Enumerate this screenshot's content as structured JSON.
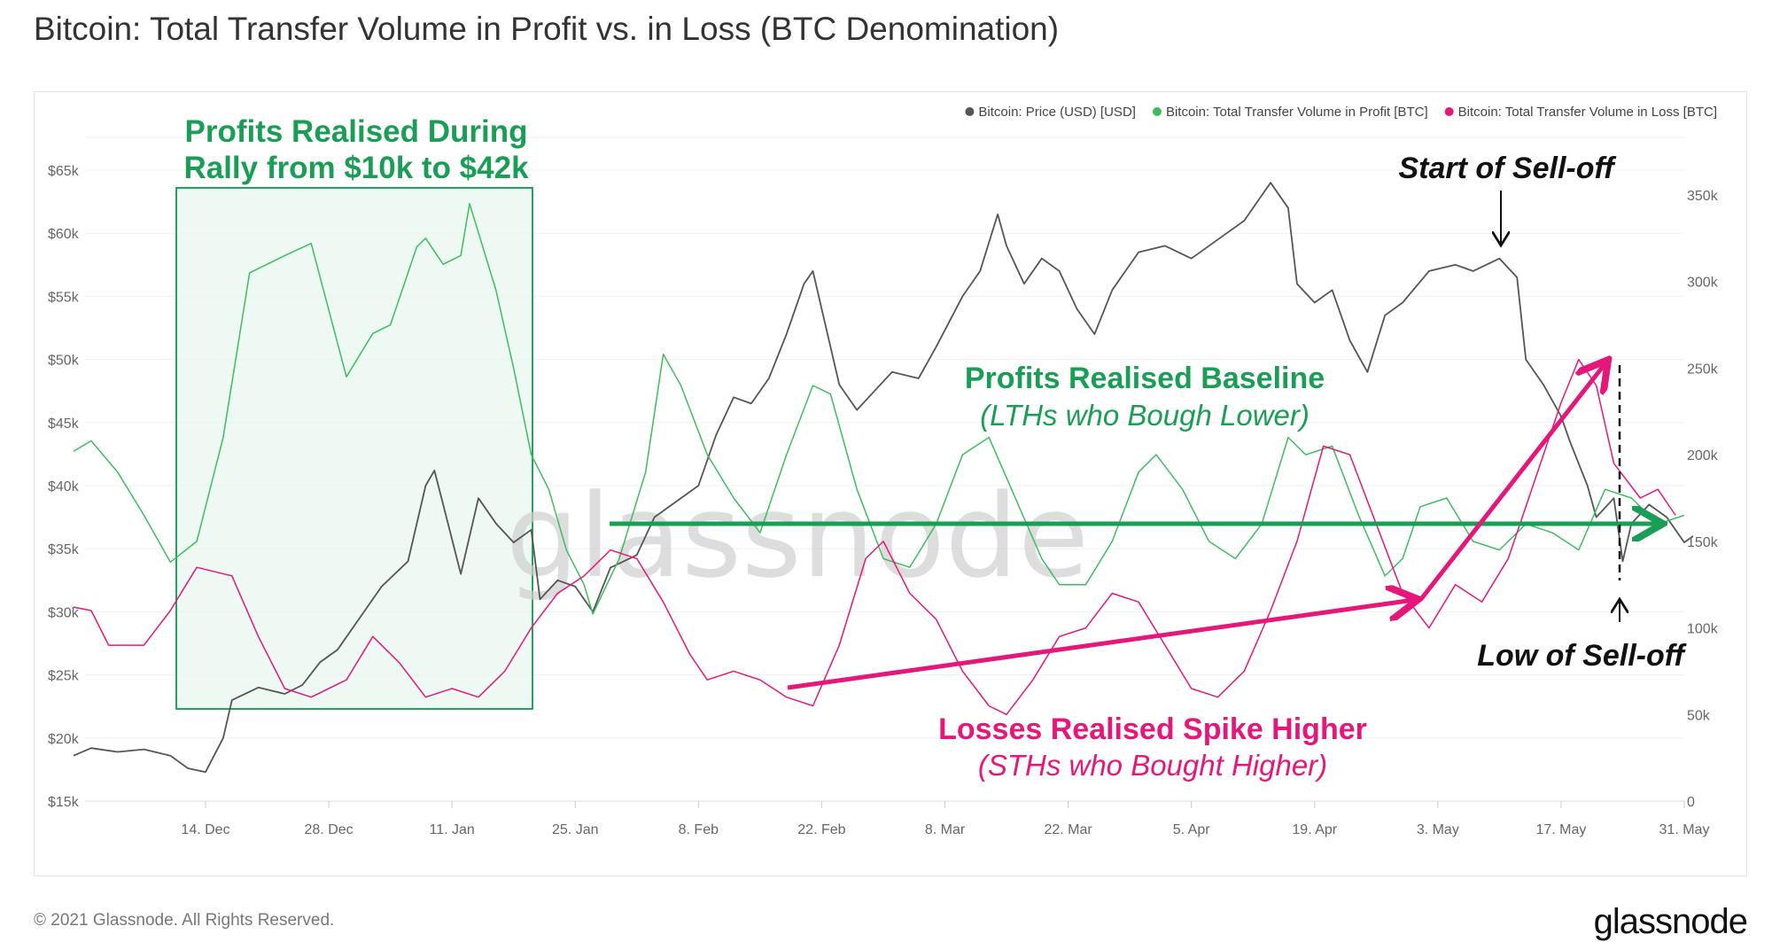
{
  "title": "Bitcoin: Total Transfer Volume in Profit vs. in Loss (BTC Denomination)",
  "footer": {
    "copyright": "© 2021 Glassnode. All Rights Reserved.",
    "logo": "glassnode"
  },
  "watermark": "glassnode",
  "colors": {
    "price": "#555555",
    "profit": "#3dbd5e",
    "loss": "#e6177a",
    "annot_green": "#1a9e55",
    "annot_pink": "#e6177a"
  },
  "annotations": {
    "box_title_1": "Profits Realised During",
    "box_title_2": "Rally from $10k to $42k",
    "start_selloff": "Start of Sell-off",
    "low_selloff": "Low of Sell-off",
    "baseline_title": "Profits Realised Baseline",
    "baseline_sub": "(LTHs who Bough Lower)",
    "losses_title": "Losses Realised Spike Higher",
    "losses_sub": "(STHs who Bought Higher)"
  },
  "chart_data": {
    "type": "line",
    "title": "Bitcoin: Total Transfer Volume in Profit vs. in Loss (BTC Denomination)",
    "x_unit": "days since 29 Nov 2020",
    "xlim": [
      0,
      185
    ],
    "x_ticks": [
      {
        "day": 15,
        "label": "14. Dec"
      },
      {
        "day": 29,
        "label": "28. Dec"
      },
      {
        "day": 43,
        "label": "11. Jan"
      },
      {
        "day": 57,
        "label": "25. Jan"
      },
      {
        "day": 71,
        "label": "8. Feb"
      },
      {
        "day": 85,
        "label": "22. Feb"
      },
      {
        "day": 99,
        "label": "8. Mar"
      },
      {
        "day": 113,
        "label": "22. Mar"
      },
      {
        "day": 127,
        "label": "5. Apr"
      },
      {
        "day": 141,
        "label": "19. Apr"
      },
      {
        "day": 155,
        "label": "3. May"
      },
      {
        "day": 169,
        "label": "17. May"
      },
      {
        "day": 183,
        "label": "31. May"
      }
    ],
    "y_left": {
      "label": "Price (USD)",
      "lim": [
        15000,
        65000
      ],
      "ticks": [
        {
          "v": 15000,
          "label": "$15k"
        },
        {
          "v": 20000,
          "label": "$20k"
        },
        {
          "v": 25000,
          "label": "$25k"
        },
        {
          "v": 30000,
          "label": "$30k"
        },
        {
          "v": 35000,
          "label": "$35k"
        },
        {
          "v": 40000,
          "label": "$40k"
        },
        {
          "v": 45000,
          "label": "$45k"
        },
        {
          "v": 50000,
          "label": "$50k"
        },
        {
          "v": 55000,
          "label": "$55k"
        },
        {
          "v": 60000,
          "label": "$60k"
        },
        {
          "v": 65000,
          "label": "$65k"
        }
      ]
    },
    "y_right": {
      "label": "BTC",
      "lim": [
        0,
        350000
      ],
      "ticks": [
        {
          "v": 0,
          "label": "0"
        },
        {
          "v": 50000,
          "label": "50k"
        },
        {
          "v": 100000,
          "label": "100k"
        },
        {
          "v": 150000,
          "label": "150k"
        },
        {
          "v": 200000,
          "label": "200k"
        },
        {
          "v": 250000,
          "label": "250k"
        },
        {
          "v": 300000,
          "label": "300k"
        },
        {
          "v": 350000,
          "label": "350k"
        }
      ]
    },
    "legend": {
      "position": "top-right",
      "entries": [
        "Bitcoin: Price (USD) [USD]",
        "Bitcoin: Total Transfer Volume in Profit [BTC]",
        "Bitcoin: Total Transfer Volume in Loss [BTC]"
      ]
    },
    "series": [
      {
        "name": "Bitcoin: Price (USD) [USD]",
        "axis": "left",
        "color": "#555555",
        "points": [
          [
            0,
            18600
          ],
          [
            2,
            19200
          ],
          [
            5,
            18900
          ],
          [
            8,
            19100
          ],
          [
            11,
            18600
          ],
          [
            13,
            17600
          ],
          [
            15,
            17300
          ],
          [
            17,
            20000
          ],
          [
            18,
            23000
          ],
          [
            21,
            24000
          ],
          [
            24,
            23500
          ],
          [
            26,
            24200
          ],
          [
            28,
            26000
          ],
          [
            30,
            27000
          ],
          [
            32,
            29000
          ],
          [
            35,
            32000
          ],
          [
            38,
            34000
          ],
          [
            40,
            40000
          ],
          [
            41,
            41200
          ],
          [
            42,
            38500
          ],
          [
            44,
            33000
          ],
          [
            46,
            39000
          ],
          [
            48,
            37000
          ],
          [
            50,
            35500
          ],
          [
            52,
            36500
          ],
          [
            53,
            31000
          ],
          [
            55,
            32500
          ],
          [
            57,
            32000
          ],
          [
            59,
            30000
          ],
          [
            61,
            33500
          ],
          [
            64,
            34500
          ],
          [
            66,
            37500
          ],
          [
            68,
            38500
          ],
          [
            71,
            40000
          ],
          [
            73,
            44000
          ],
          [
            75,
            47000
          ],
          [
            77,
            46500
          ],
          [
            79,
            48500
          ],
          [
            81,
            52000
          ],
          [
            83,
            56000
          ],
          [
            84,
            57000
          ],
          [
            85,
            54000
          ],
          [
            87,
            48000
          ],
          [
            89,
            46000
          ],
          [
            91,
            47500
          ],
          [
            93,
            49000
          ],
          [
            96,
            48500
          ],
          [
            98,
            51000
          ],
          [
            101,
            55000
          ],
          [
            103,
            57000
          ],
          [
            105,
            61500
          ],
          [
            106,
            59000
          ],
          [
            108,
            56000
          ],
          [
            110,
            58000
          ],
          [
            112,
            57000
          ],
          [
            114,
            54000
          ],
          [
            116,
            52000
          ],
          [
            118,
            55500
          ],
          [
            121,
            58500
          ],
          [
            124,
            59000
          ],
          [
            127,
            58000
          ],
          [
            130,
            59500
          ],
          [
            133,
            61000
          ],
          [
            135,
            63000
          ],
          [
            136,
            64000
          ],
          [
            138,
            62000
          ],
          [
            139,
            56000
          ],
          [
            141,
            54500
          ],
          [
            143,
            55500
          ],
          [
            145,
            51500
          ],
          [
            147,
            49000
          ],
          [
            149,
            53500
          ],
          [
            151,
            54500
          ],
          [
            154,
            57000
          ],
          [
            157,
            57500
          ],
          [
            159,
            57000
          ],
          [
            162,
            58000
          ],
          [
            164,
            56500
          ],
          [
            165,
            50000
          ],
          [
            167,
            48000
          ],
          [
            169,
            45500
          ],
          [
            170,
            43500
          ],
          [
            172,
            40000
          ],
          [
            173,
            37500
          ],
          [
            175,
            39000
          ],
          [
            176,
            34000
          ],
          [
            177,
            37000
          ],
          [
            179,
            38500
          ],
          [
            181,
            37500
          ],
          [
            183,
            35500
          ],
          [
            184,
            36000
          ]
        ]
      },
      {
        "name": "Bitcoin: Total Transfer Volume in Profit [BTC]",
        "axis": "right",
        "color": "#3dbd5e",
        "points": [
          [
            0,
            202000
          ],
          [
            2,
            208000
          ],
          [
            5,
            190000
          ],
          [
            8,
            165000
          ],
          [
            11,
            138000
          ],
          [
            14,
            150000
          ],
          [
            17,
            210000
          ],
          [
            20,
            305000
          ],
          [
            24,
            315000
          ],
          [
            27,
            322000
          ],
          [
            31,
            245000
          ],
          [
            34,
            270000
          ],
          [
            36,
            275000
          ],
          [
            39,
            320000
          ],
          [
            40,
            325000
          ],
          [
            42,
            310000
          ],
          [
            44,
            315000
          ],
          [
            45,
            345000
          ],
          [
            48,
            295000
          ],
          [
            50,
            250000
          ],
          [
            52,
            200000
          ],
          [
            54,
            180000
          ],
          [
            56,
            145000
          ],
          [
            58,
            125000
          ],
          [
            59,
            108000
          ],
          [
            62,
            140000
          ],
          [
            65,
            190000
          ],
          [
            67,
            258000
          ],
          [
            69,
            240000
          ],
          [
            72,
            200000
          ],
          [
            75,
            175000
          ],
          [
            78,
            155000
          ],
          [
            81,
            200000
          ],
          [
            84,
            240000
          ],
          [
            86,
            235000
          ],
          [
            89,
            180000
          ],
          [
            92,
            140000
          ],
          [
            95,
            135000
          ],
          [
            98,
            160000
          ],
          [
            101,
            200000
          ],
          [
            104,
            210000
          ],
          [
            107,
            175000
          ],
          [
            110,
            140000
          ],
          [
            112,
            125000
          ],
          [
            115,
            125000
          ],
          [
            118,
            150000
          ],
          [
            121,
            190000
          ],
          [
            123,
            200000
          ],
          [
            126,
            180000
          ],
          [
            129,
            150000
          ],
          [
            132,
            140000
          ],
          [
            135,
            160000
          ],
          [
            138,
            210000
          ],
          [
            140,
            200000
          ],
          [
            143,
            205000
          ],
          [
            146,
            165000
          ],
          [
            149,
            130000
          ],
          [
            151,
            140000
          ],
          [
            153,
            170000
          ],
          [
            156,
            175000
          ],
          [
            159,
            150000
          ],
          [
            162,
            145000
          ],
          [
            165,
            160000
          ],
          [
            168,
            155000
          ],
          [
            171,
            145000
          ],
          [
            174,
            180000
          ],
          [
            177,
            175000
          ],
          [
            180,
            160000
          ],
          [
            183,
            165000
          ]
        ]
      },
      {
        "name": "Bitcoin: Total Transfer Volume in Loss [BTC]",
        "axis": "right",
        "color": "#e6177a",
        "points": [
          [
            0,
            112000
          ],
          [
            2,
            110000
          ],
          [
            4,
            90000
          ],
          [
            8,
            90000
          ],
          [
            11,
            110000
          ],
          [
            14,
            135000
          ],
          [
            18,
            130000
          ],
          [
            21,
            95000
          ],
          [
            24,
            65000
          ],
          [
            27,
            60000
          ],
          [
            31,
            70000
          ],
          [
            34,
            95000
          ],
          [
            37,
            80000
          ],
          [
            40,
            60000
          ],
          [
            43,
            65000
          ],
          [
            46,
            60000
          ],
          [
            49,
            75000
          ],
          [
            52,
            100000
          ],
          [
            55,
            120000
          ],
          [
            58,
            130000
          ],
          [
            61,
            145000
          ],
          [
            64,
            140000
          ],
          [
            67,
            115000
          ],
          [
            70,
            85000
          ],
          [
            72,
            70000
          ],
          [
            75,
            75000
          ],
          [
            78,
            70000
          ],
          [
            81,
            60000
          ],
          [
            84,
            55000
          ],
          [
            87,
            90000
          ],
          [
            90,
            140000
          ],
          [
            92,
            150000
          ],
          [
            95,
            120000
          ],
          [
            98,
            105000
          ],
          [
            101,
            75000
          ],
          [
            104,
            55000
          ],
          [
            106,
            50000
          ],
          [
            109,
            70000
          ],
          [
            112,
            95000
          ],
          [
            115,
            100000
          ],
          [
            118,
            120000
          ],
          [
            121,
            115000
          ],
          [
            124,
            90000
          ],
          [
            127,
            65000
          ],
          [
            130,
            60000
          ],
          [
            133,
            75000
          ],
          [
            136,
            110000
          ],
          [
            139,
            150000
          ],
          [
            142,
            205000
          ],
          [
            145,
            200000
          ],
          [
            148,
            160000
          ],
          [
            151,
            120000
          ],
          [
            154,
            100000
          ],
          [
            157,
            125000
          ],
          [
            160,
            115000
          ],
          [
            163,
            140000
          ],
          [
            166,
            185000
          ],
          [
            169,
            230000
          ],
          [
            171,
            255000
          ],
          [
            173,
            240000
          ],
          [
            175,
            195000
          ],
          [
            178,
            175000
          ],
          [
            180,
            180000
          ],
          [
            182,
            165000
          ]
        ]
      }
    ]
  }
}
